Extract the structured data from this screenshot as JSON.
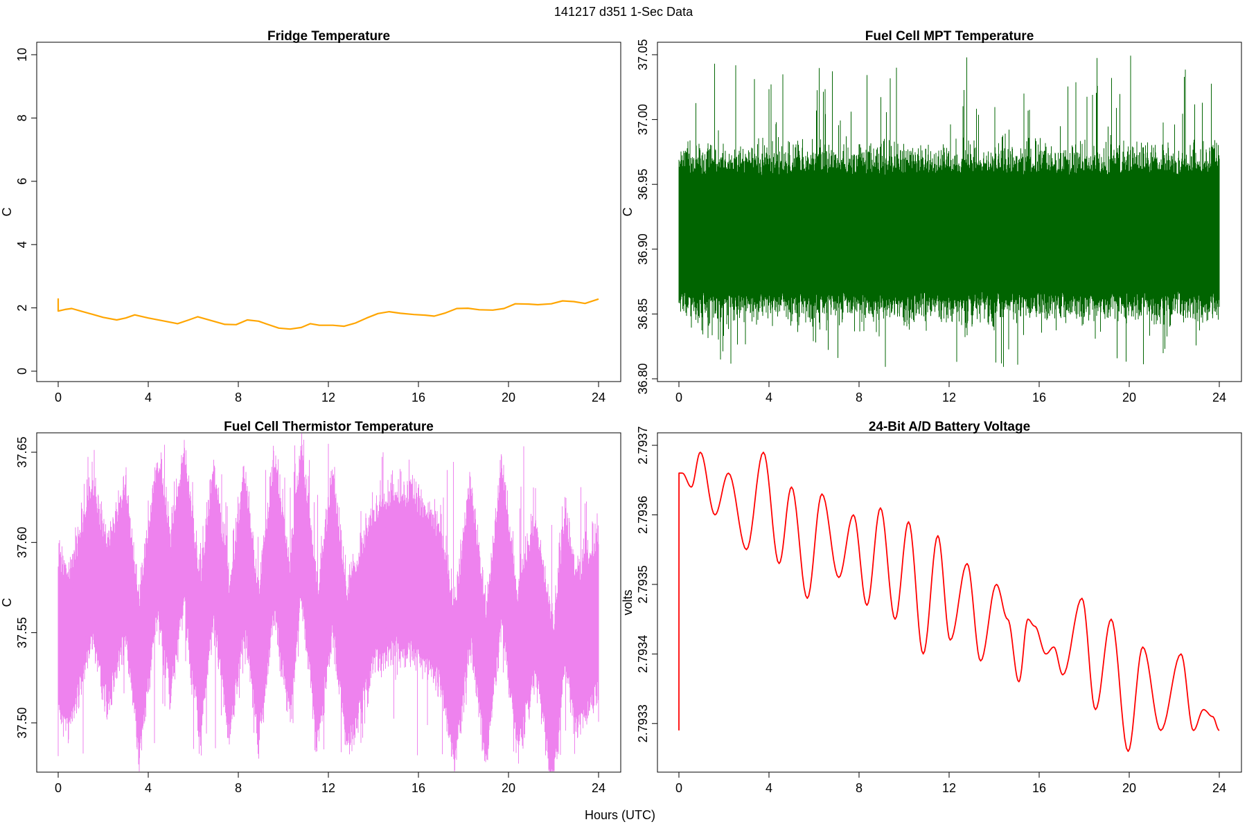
{
  "figure": {
    "title": "141217   d351   1-Sec Data",
    "xlabel": "Hours (UTC)"
  },
  "chart_data": [
    {
      "type": "line",
      "title": "Fridge Temperature",
      "xlabel": "",
      "ylabel": "C",
      "xlim": [
        0,
        24
      ],
      "ylim": [
        0,
        10
      ],
      "x_ticks": [
        "0",
        "4",
        "8",
        "12",
        "16",
        "20",
        "24"
      ],
      "y_ticks": [
        "0",
        "2",
        "4",
        "6",
        "8",
        "10"
      ],
      "color": "#ffa500",
      "grid": false,
      "series": [
        {
          "x": [
            0,
            0.3,
            0.6,
            1,
            1.5,
            2,
            2.6,
            3,
            3.4,
            4,
            4.6,
            5.3,
            5.8,
            6.2,
            6.8,
            7.4,
            7.9,
            8.4,
            8.9,
            9.3,
            9.8,
            10.3,
            10.8,
            11.2,
            11.6,
            12.2,
            12.7,
            13.2,
            13.7,
            14.2,
            14.7,
            15.2,
            15.8,
            16.3,
            16.7,
            17.2,
            17.7,
            18.2,
            18.7,
            19.3,
            19.8,
            20.3,
            20.9,
            21.3,
            21.9,
            22.4,
            22.9,
            23.4,
            24
          ],
          "y": [
            1.9,
            1.95,
            1.98,
            1.9,
            1.8,
            1.7,
            1.62,
            1.68,
            1.78,
            1.68,
            1.6,
            1.5,
            1.62,
            1.72,
            1.6,
            1.48,
            1.47,
            1.62,
            1.58,
            1.48,
            1.36,
            1.33,
            1.38,
            1.5,
            1.45,
            1.45,
            1.42,
            1.52,
            1.68,
            1.82,
            1.88,
            1.83,
            1.79,
            1.77,
            1.74,
            1.84,
            1.98,
            1.99,
            1.94,
            1.93,
            1.98,
            2.13,
            2.12,
            2.1,
            2.13,
            2.22,
            2.2,
            2.14,
            2.28
          ]
        }
      ]
    },
    {
      "type": "line",
      "title": "Fuel Cell MPT Temperature",
      "xlabel": "",
      "ylabel": "C",
      "xlim": [
        0,
        24
      ],
      "ylim": [
        36.8,
        37.05
      ],
      "x_ticks": [
        "0",
        "4",
        "8",
        "12",
        "16",
        "20",
        "24"
      ],
      "y_ticks": [
        "36.80",
        "36.85",
        "36.90",
        "36.95",
        "37.00",
        "37.05"
      ],
      "color": "#006400",
      "grid": false,
      "noise_band": {
        "center": 36.912,
        "core_half_width": 0.045,
        "spike_max": 37.05,
        "spike_min": 36.807
      }
    },
    {
      "type": "line",
      "title": "Fuel Cell Thermistor Temperature",
      "xlabel": "",
      "ylabel": "C",
      "xlim": [
        0,
        24
      ],
      "ylim": [
        37.48,
        37.655
      ],
      "x_ticks": [
        "0",
        "4",
        "8",
        "12",
        "16",
        "20",
        "24"
      ],
      "y_ticks": [
        "37.50",
        "37.55",
        "37.60",
        "37.65"
      ],
      "color": "#ee82ee",
      "grid": false,
      "noise_band": {
        "center_x": [
          0,
          0.5,
          1.5,
          2.2,
          3,
          3.6,
          4.4,
          5,
          5.6,
          6.3,
          6.9,
          7.6,
          8.3,
          8.9,
          9.6,
          10.3,
          10.8,
          11.5,
          12.2,
          12.8,
          13.5,
          14,
          15,
          16,
          17,
          17.6,
          18.3,
          19,
          19.7,
          20.4,
          21.2,
          22,
          22.5,
          23,
          24
        ],
        "center_y": [
          37.55,
          37.54,
          37.59,
          37.555,
          37.59,
          37.525,
          37.605,
          37.56,
          37.61,
          37.535,
          37.6,
          37.535,
          37.595,
          37.53,
          37.605,
          37.545,
          37.615,
          37.53,
          37.595,
          37.53,
          37.555,
          37.575,
          37.585,
          37.58,
          37.565,
          37.52,
          37.59,
          37.52,
          37.6,
          37.53,
          37.57,
          37.51,
          37.575,
          37.54,
          37.56
        ],
        "half_width": 0.035,
        "spike_max": 37.655,
        "spike_min": 37.481
      }
    },
    {
      "type": "line",
      "title": "24-Bit A/D Battery Voltage",
      "xlabel": "",
      "ylabel": "volts",
      "xlim": [
        0,
        24
      ],
      "ylim": [
        2.79325,
        2.79371
      ],
      "x_ticks": [
        "0",
        "4",
        "8",
        "12",
        "16",
        "20",
        "24"
      ],
      "y_ticks": [
        "2.7933",
        "2.7934",
        "2.7935",
        "2.7936",
        "2.7937"
      ],
      "color": "#ff0000",
      "grid": false,
      "series": [
        {
          "x": [
            0,
            0.02,
            0.15,
            0.55,
            0.95,
            1.6,
            2.2,
            3.0,
            3.75,
            4.45,
            5.0,
            5.7,
            6.35,
            7.1,
            7.75,
            8.35,
            8.95,
            9.6,
            10.2,
            10.85,
            11.5,
            12.05,
            12.8,
            13.4,
            14.1,
            14.6,
            15.1,
            15.5,
            15.8,
            16.3,
            16.65,
            17.05,
            17.9,
            18.5,
            19.2,
            19.95,
            20.6,
            21.4,
            22.3,
            22.85,
            23.3,
            23.7,
            24
          ],
          "y": [
            2.79329,
            2.79366,
            2.79366,
            2.79364,
            2.79369,
            2.7936,
            2.79366,
            2.79355,
            2.79369,
            2.79353,
            2.79364,
            2.79348,
            2.79363,
            2.79351,
            2.7936,
            2.79347,
            2.79361,
            2.79345,
            2.79359,
            2.7934,
            2.79357,
            2.79342,
            2.79353,
            2.79339,
            2.7935,
            2.79345,
            2.79336,
            2.79345,
            2.79344,
            2.7934,
            2.79341,
            2.79337,
            2.79348,
            2.79332,
            2.79345,
            2.79326,
            2.79341,
            2.79329,
            2.7934,
            2.79329,
            2.79332,
            2.79331,
            2.79329
          ]
        }
      ]
    }
  ]
}
